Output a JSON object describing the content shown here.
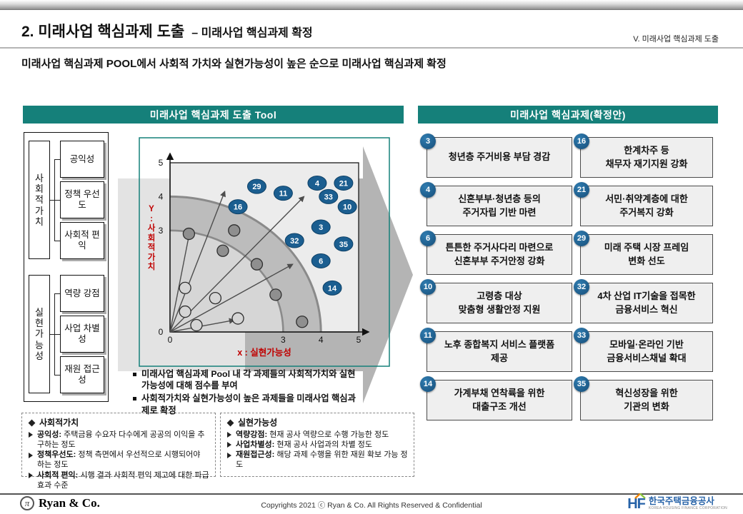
{
  "page": {
    "title_main": "2. 미래사업 핵심과제 도출",
    "title_sub": "– 미래사업 핵심과제 확정",
    "section_ref": "V. 미래사업 핵심과제 도출",
    "subtitle": "미래사업 핵심과제 POOL에서 사회적 가치와 실현가능성이 높은 순으로 미래사업 핵심과제 확정"
  },
  "tool_panel": {
    "title": "미래사업 핵심과제 도출 Tool",
    "factor_groups": [
      {
        "label": "사회적 가치",
        "factors": [
          "공익성",
          "정책 우선도",
          "사회적 편익"
        ]
      },
      {
        "label": "실현가능성",
        "factors": [
          "역량 강점",
          "사업 차별성",
          "재원 접근성"
        ]
      }
    ],
    "bullets": [
      "미래사업 핵심과제 Pool 내 각 과제들의 사회적가치와 실현가능성에 대해 점수를 부여",
      "사회적가치와 실현가능성이 높은 과제들을 미래사업 핵심과제로 확정"
    ]
  },
  "chart_data": {
    "type": "scatter",
    "title": "미래사업 핵심과제 도출 Tool",
    "xlabel": "x : 실현가능성",
    "ylabel": "Y : 사회적가치",
    "xlim": [
      0,
      5
    ],
    "ylim": [
      0,
      5
    ],
    "x_ticks": [
      0,
      3,
      4,
      5
    ],
    "y_ticks": [
      0,
      3,
      4,
      5
    ],
    "quadrant_arc_radii": [
      3,
      4
    ],
    "selected_tasks": [
      {
        "id": "16",
        "x": 1.8,
        "y": 3.7
      },
      {
        "id": "29",
        "x": 2.3,
        "y": 4.3
      },
      {
        "id": "11",
        "x": 3.0,
        "y": 4.1
      },
      {
        "id": "4",
        "x": 3.9,
        "y": 4.4
      },
      {
        "id": "21",
        "x": 4.6,
        "y": 4.4
      },
      {
        "id": "33",
        "x": 4.2,
        "y": 4.0
      },
      {
        "id": "10",
        "x": 4.7,
        "y": 3.7
      },
      {
        "id": "3",
        "x": 4.0,
        "y": 3.1
      },
      {
        "id": "32",
        "x": 3.3,
        "y": 2.7
      },
      {
        "id": "35",
        "x": 4.6,
        "y": 2.6
      },
      {
        "id": "6",
        "x": 4.0,
        "y": 2.1
      },
      {
        "id": "14",
        "x": 4.3,
        "y": 1.3
      }
    ],
    "other_points": [
      {
        "x": 0.5,
        "y": 2.9,
        "shade": "dark"
      },
      {
        "x": 1.7,
        "y": 3.0,
        "shade": "dark"
      },
      {
        "x": 1.4,
        "y": 2.4,
        "shade": "dark"
      },
      {
        "x": 2.3,
        "y": 2.0,
        "shade": "dark"
      },
      {
        "x": 2.8,
        "y": 1.1,
        "shade": "dark"
      },
      {
        "x": 3.5,
        "y": 0.3,
        "shade": "dark"
      },
      {
        "x": 0.4,
        "y": 1.3,
        "shade": "light"
      },
      {
        "x": 1.2,
        "y": 1.0,
        "shade": "light"
      },
      {
        "x": 0.4,
        "y": 0.6,
        "shade": "light"
      },
      {
        "x": 0.7,
        "y": 0.2,
        "shade": "light"
      },
      {
        "x": 1.8,
        "y": 0.4,
        "shade": "light"
      }
    ],
    "fan_arrows": [
      {
        "x": 0.52,
        "y": 2.95
      },
      {
        "x": 1.45,
        "y": 4.15
      },
      {
        "x": 3.55,
        "y": 4.0
      },
      {
        "x": 3.25,
        "y": 2.0
      },
      {
        "x": 1.7,
        "y": 0.35
      }
    ]
  },
  "result_panel": {
    "title": "미래사업 핵심과제(확정안)",
    "items": [
      {
        "num": "3",
        "text": "청년층 주거비용 부담 경감"
      },
      {
        "num": "16",
        "text": "한계차주 등\n채무자 재기지원 강화"
      },
      {
        "num": "4",
        "text": "신혼부부·청년층 등의\n주거자립 기반 마련"
      },
      {
        "num": "21",
        "text": "서민·취약계층에 대한\n주거복지 강화"
      },
      {
        "num": "6",
        "text": "튼튼한 주거사다리 마련으로\n신혼부부 주거안정 강화"
      },
      {
        "num": "29",
        "text": "미래 주택 시장 프레임\n변화 선도"
      },
      {
        "num": "10",
        "text": "고령층 대상\n맞춤형 생활안정 지원"
      },
      {
        "num": "32",
        "text": "4차 산업 IT기술을 접목한\n금융서비스 혁신"
      },
      {
        "num": "11",
        "text": "노후 종합복지 서비스 플랫폼\n제공"
      },
      {
        "num": "33",
        "text": "모바일·온라인 기반\n금융서비스채널 확대"
      },
      {
        "num": "14",
        "text": "가계부채 연착륙을 위한\n대출구조 개선"
      },
      {
        "num": "35",
        "text": "혁신성장을 위한\n기관의 변화"
      }
    ]
  },
  "footnotes": [
    {
      "title": "사회적가치",
      "lines": [
        {
          "term": "공익성:",
          "rest": " 주택금융 수요자 다수에게 공공의 이익을 추구하는 정도"
        },
        {
          "term": "정책우선도:",
          "rest": " 정책 측면에서 우선적으로 시행되어야 하는 정도"
        },
        {
          "term": "사회적 편익:",
          "rest": " 시행 결과 사회적 편익 제고에 대한 파급 효과 수준"
        }
      ]
    },
    {
      "title": "실현가능성",
      "lines": [
        {
          "term": "역량강점:",
          "rest": " 현재 공사 역량으로 수행 가능한 정도"
        },
        {
          "term": "사업차별성:",
          "rest": " 현재 공사 사업과의 차별 정도"
        },
        {
          "term": "재원접근성:",
          "rest": " 해당 과제 수행을 위한 재원 확보 가능 정도"
        }
      ]
    }
  ],
  "footer": {
    "logo_symbol": "π",
    "company": "Ryan & Co.",
    "copyright": "Copyrights 2021 ⓒ Ryan & Co. All Rights Reserved & Confidential",
    "hf_logo_text": "HF",
    "hf_name": "한국주택금융공사",
    "hf_name_en": "KOREA HOUSING FINANCE CORPORATION"
  },
  "colors": {
    "teal_header": "#15807A",
    "badge_blue": "#1B5E90",
    "axis_label_red": "#C00000"
  }
}
